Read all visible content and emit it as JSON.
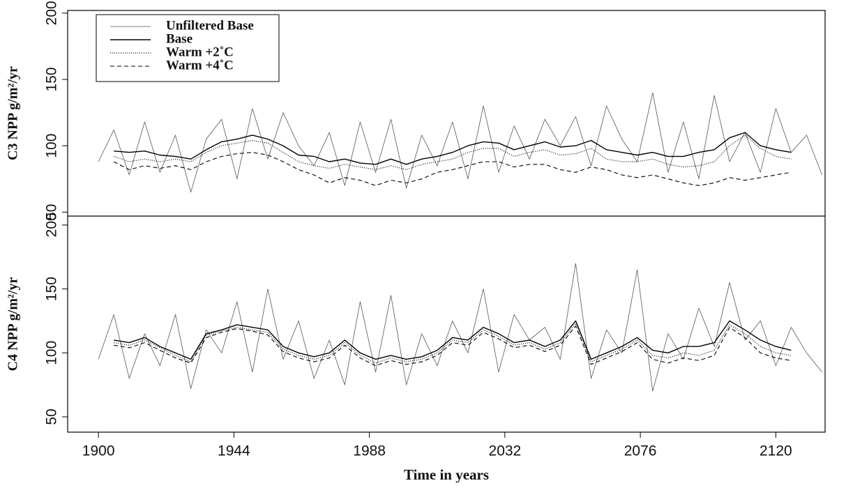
{
  "chart_data": [
    {
      "type": "line",
      "ylabel": "C3 NPP g/m²/yr",
      "legend": "upper left",
      "x": [
        1900,
        1905,
        1910,
        1915,
        1920,
        1925,
        1930,
        1935,
        1940,
        1945,
        1950,
        1955,
        1960,
        1965,
        1970,
        1975,
        1980,
        1985,
        1990,
        1995,
        2000,
        2005,
        2010,
        2015,
        2020,
        2025,
        2030,
        2035,
        2040,
        2045,
        2050,
        2055,
        2060,
        2065,
        2070,
        2075,
        2080,
        2085,
        2090,
        2095,
        2100,
        2105,
        2110,
        2115,
        2120,
        2125,
        2130,
        2135
      ],
      "xlim": [
        1890,
        2136
      ],
      "ylim": [
        47,
        202
      ],
      "yticks": [
        50,
        100,
        150,
        200
      ],
      "series": [
        {
          "name": "Unfiltered Base",
          "color": "#555555",
          "dash": "none",
          "width": 0.8,
          "values": [
            88,
            112,
            78,
            118,
            80,
            108,
            65,
            105,
            120,
            75,
            128,
            90,
            125,
            100,
            85,
            110,
            70,
            118,
            80,
            120,
            68,
            108,
            85,
            118,
            75,
            130,
            80,
            115,
            90,
            120,
            100,
            122,
            85,
            130,
            105,
            88,
            140,
            80,
            118,
            75,
            138,
            88,
            110,
            80,
            128,
            95,
            108,
            78
          ]
        },
        {
          "name": "Base",
          "color": "#000000",
          "dash": "none",
          "width": 1.4,
          "values": [
            null,
            96,
            95,
            96,
            93,
            92,
            90,
            97,
            103,
            105,
            108,
            105,
            100,
            93,
            92,
            88,
            90,
            87,
            86,
            90,
            86,
            90,
            92,
            95,
            100,
            103,
            102,
            97,
            100,
            103,
            99,
            100,
            104,
            97,
            95,
            93,
            95,
            92,
            92,
            95,
            97,
            106,
            110,
            100,
            97,
            95,
            null,
            null
          ]
        },
        {
          "name": "Warm +2˚C",
          "color": "#000000",
          "dash": "1,2",
          "width": 1.2,
          "values": [
            null,
            92,
            88,
            90,
            88,
            90,
            88,
            95,
            100,
            102,
            104,
            102,
            95,
            88,
            85,
            83,
            86,
            84,
            82,
            85,
            82,
            86,
            88,
            90,
            95,
            98,
            98,
            92,
            95,
            97,
            93,
            94,
            98,
            90,
            88,
            88,
            90,
            86,
            84,
            85,
            88,
            100,
            108,
            98,
            92,
            90,
            null,
            null
          ]
        },
        {
          "name": "Warm +4˚C",
          "color": "#000000",
          "dash": "6,4",
          "width": 1.1,
          "values": [
            null,
            88,
            82,
            85,
            83,
            85,
            82,
            88,
            92,
            94,
            95,
            93,
            88,
            82,
            78,
            72,
            76,
            74,
            70,
            74,
            72,
            75,
            80,
            82,
            85,
            88,
            88,
            84,
            86,
            86,
            82,
            80,
            84,
            82,
            78,
            76,
            78,
            75,
            72,
            70,
            72,
            76,
            74,
            76,
            78,
            80,
            null,
            null
          ]
        }
      ]
    },
    {
      "type": "line",
      "ylabel": "C4 NPP g/m²/yr",
      "xlabel": "Time in years",
      "x": [
        1900,
        1905,
        1910,
        1915,
        1920,
        1925,
        1930,
        1935,
        1940,
        1945,
        1950,
        1955,
        1960,
        1965,
        1970,
        1975,
        1980,
        1985,
        1990,
        1995,
        2000,
        2005,
        2010,
        2015,
        2020,
        2025,
        2030,
        2035,
        2040,
        2045,
        2050,
        2055,
        2060,
        2065,
        2070,
        2075,
        2080,
        2085,
        2090,
        2095,
        2100,
        2105,
        2110,
        2115,
        2120,
        2125,
        2130,
        2135
      ],
      "xlim": [
        1890,
        2136
      ],
      "xticks": [
        1900,
        1944,
        1988,
        2032,
        2076,
        2120
      ],
      "ylim": [
        38,
        207
      ],
      "yticks": [
        50,
        100,
        150,
        200
      ],
      "series": [
        {
          "color": "#555555",
          "dash": "none",
          "width": 0.8,
          "values": [
            95,
            130,
            80,
            115,
            90,
            130,
            72,
            118,
            100,
            140,
            85,
            150,
            95,
            125,
            80,
            110,
            75,
            140,
            85,
            145,
            75,
            115,
            90,
            125,
            100,
            150,
            85,
            130,
            110,
            120,
            95,
            170,
            80,
            118,
            100,
            165,
            70,
            115,
            95,
            135,
            105,
            155,
            110,
            125,
            90,
            120,
            100,
            85
          ]
        },
        {
          "color": "#000000",
          "dash": "none",
          "width": 1.4,
          "values": [
            null,
            110,
            108,
            112,
            105,
            100,
            95,
            115,
            118,
            122,
            120,
            118,
            105,
            100,
            97,
            100,
            110,
            100,
            95,
            98,
            95,
            97,
            102,
            112,
            110,
            120,
            115,
            108,
            110,
            105,
            110,
            125,
            95,
            100,
            105,
            112,
            102,
            100,
            105,
            105,
            108,
            125,
            118,
            110,
            105,
            102,
            null,
            null
          ]
        },
        {
          "color": "#000000",
          "dash": "1,2",
          "width": 1.2,
          "values": [
            null,
            108,
            106,
            110,
            104,
            98,
            93,
            114,
            117,
            120,
            118,
            116,
            103,
            98,
            95,
            98,
            108,
            98,
            92,
            96,
            93,
            95,
            100,
            110,
            108,
            118,
            113,
            106,
            108,
            103,
            108,
            123,
            93,
            98,
            103,
            110,
            98,
            96,
            100,
            98,
            102,
            122,
            115,
            105,
            100,
            98,
            null,
            null
          ]
        },
        {
          "color": "#000000",
          "dash": "6,4",
          "width": 1.1,
          "values": [
            null,
            106,
            104,
            108,
            102,
            96,
            92,
            112,
            116,
            119,
            117,
            114,
            101,
            96,
            93,
            96,
            106,
            96,
            90,
            94,
            91,
            93,
            98,
            108,
            106,
            116,
            111,
            104,
            106,
            101,
            106,
            121,
            91,
            96,
            101,
            108,
            95,
            92,
            96,
            94,
            98,
            120,
            112,
            100,
            96,
            94,
            null,
            null
          ]
        }
      ]
    }
  ]
}
